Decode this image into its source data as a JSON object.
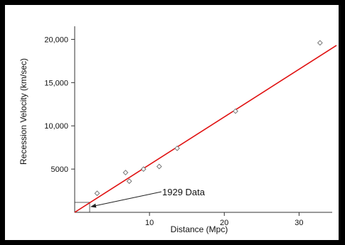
{
  "chart_data": {
    "type": "scatter",
    "title": "",
    "xlabel": "Distance (Mpc)",
    "ylabel": "Recession Velocity (km/sec)",
    "xlim": [
      0,
      35
    ],
    "ylim": [
      0,
      22500
    ],
    "x_ticks": [
      {
        "value": 10,
        "label": "10"
      },
      {
        "value": 20,
        "label": "20"
      },
      {
        "value": 30,
        "label": "30"
      }
    ],
    "y_ticks": [
      {
        "value": 5000,
        "label": "5000"
      },
      {
        "value": 10000,
        "label": "10,000"
      },
      {
        "value": 15000,
        "label": "15,000"
      },
      {
        "value": 20000,
        "label": "20,000"
      }
    ],
    "grid": false,
    "legend": "none",
    "series": [
      {
        "points": [
          {
            "x": 3.0,
            "y": 2200
          },
          {
            "x": 6.8,
            "y": 4600
          },
          {
            "x": 7.3,
            "y": 3600
          },
          {
            "x": 9.2,
            "y": 5000
          },
          {
            "x": 11.3,
            "y": 5300
          },
          {
            "x": 13.7,
            "y": 7400
          },
          {
            "x": 21.5,
            "y": 11700
          },
          {
            "x": 32.8,
            "y": 19600
          }
        ],
        "marker": "diamond",
        "color": "#777777"
      }
    ],
    "fit_line": {
      "x": [
        0,
        35
      ],
      "y": [
        0,
        19300
      ],
      "color": "#e01010"
    },
    "annotation": {
      "text": "1929 Data",
      "box": {
        "x": [
          0,
          2
        ],
        "y": [
          0,
          1150
        ]
      }
    }
  }
}
